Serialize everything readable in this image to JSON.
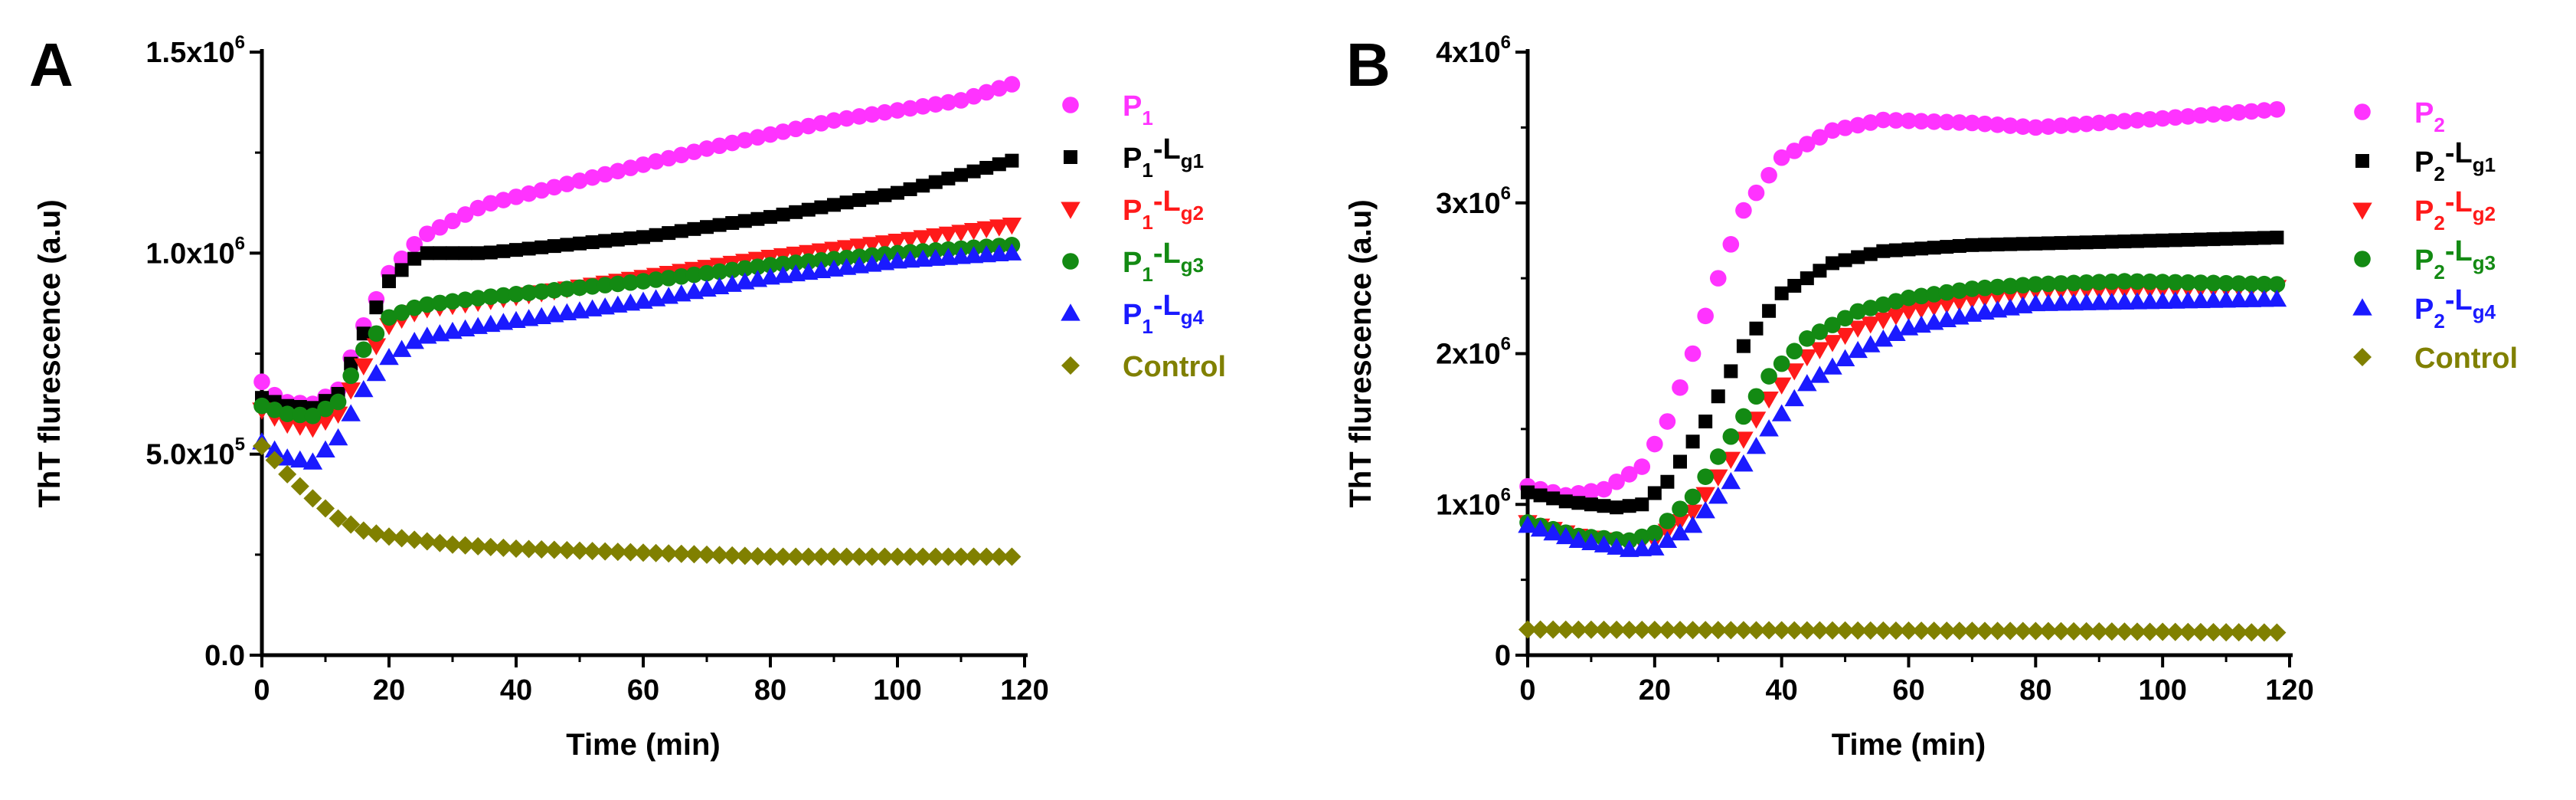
{
  "panels": [
    {
      "label": "A",
      "xlabel": "Time (min)",
      "ylabel": "ThT flurescence (a.u)",
      "xlim": [
        0,
        120
      ],
      "ylim": [
        0,
        1500000
      ],
      "xticks": [
        0,
        20,
        40,
        60,
        80,
        100,
        120
      ],
      "yticks": [
        {
          "value": 0,
          "mantissa": "0.0",
          "exp": ""
        },
        {
          "value": 500000,
          "mantissa": "5.0x10",
          "exp": "5"
        },
        {
          "value": 1000000,
          "mantissa": "1.0x10",
          "exp": "6"
        },
        {
          "value": 1500000,
          "mantissa": "1.5x10",
          "exp": "6"
        }
      ],
      "legend": [
        {
          "label": "P",
          "s1": "1",
          "mid": "",
          "s2": "",
          "color": "#ff33ff",
          "marker": "circle"
        },
        {
          "label": "P",
          "s1": "1",
          "mid": "-L",
          "s2": "g1",
          "color": "#000000",
          "marker": "square"
        },
        {
          "label": "P",
          "s1": "1",
          "mid": "-L",
          "s2": "g2",
          "color": "#ff1a1a",
          "marker": "tri-down"
        },
        {
          "label": "P",
          "s1": "1",
          "mid": "-L",
          "s2": "g3",
          "color": "#138a13",
          "marker": "circle"
        },
        {
          "label": "P",
          "s1": "1",
          "mid": "-L",
          "s2": "g4",
          "color": "#1a1aff",
          "marker": "tri-up"
        },
        {
          "label": "Control",
          "s1": "",
          "mid": "",
          "s2": "",
          "color": "#808000",
          "marker": "diamond"
        }
      ]
    },
    {
      "label": "B",
      "xlabel": "Time (min)",
      "ylabel": "ThT flurescence (a.u)",
      "xlim": [
        0,
        120
      ],
      "ylim": [
        0,
        4000000
      ],
      "xticks": [
        0,
        20,
        40,
        60,
        80,
        100,
        120
      ],
      "yticks": [
        {
          "value": 0,
          "mantissa": "0",
          "exp": ""
        },
        {
          "value": 1000000,
          "mantissa": "1x10",
          "exp": "6"
        },
        {
          "value": 2000000,
          "mantissa": "2x10",
          "exp": "6"
        },
        {
          "value": 3000000,
          "mantissa": "3x10",
          "exp": "6"
        },
        {
          "value": 4000000,
          "mantissa": "4x10",
          "exp": "6"
        }
      ],
      "legend": [
        {
          "label": "P",
          "s1": "2",
          "mid": "",
          "s2": "",
          "color": "#ff33ff",
          "marker": "circle"
        },
        {
          "label": "P",
          "s1": "2",
          "mid": "-L",
          "s2": "g1",
          "color": "#000000",
          "marker": "square"
        },
        {
          "label": "P",
          "s1": "2",
          "mid": "-L",
          "s2": "g2",
          "color": "#ff1a1a",
          "marker": "tri-down"
        },
        {
          "label": "P",
          "s1": "2",
          "mid": "-L",
          "s2": "g3",
          "color": "#138a13",
          "marker": "circle"
        },
        {
          "label": "P",
          "s1": "2",
          "mid": "-L",
          "s2": "g4",
          "color": "#1a1aff",
          "marker": "tri-up"
        },
        {
          "label": "Control",
          "s1": "",
          "mid": "",
          "s2": "",
          "color": "#808000",
          "marker": "diamond"
        }
      ]
    }
  ],
  "chart_data": [
    {
      "type": "scatter",
      "title": "A",
      "xlabel": "Time (min)",
      "ylabel": "ThT flurescence (a.u)",
      "xlim": [
        0,
        120
      ],
      "ylim": [
        0,
        1500000
      ],
      "sampling": {
        "start": 0,
        "end": 118,
        "step": 2
      },
      "series": [
        {
          "name": "P1",
          "color": "#ff33ff",
          "marker": "circle",
          "keypoints": [
            [
              0,
              680000
            ],
            [
              3,
              630000
            ],
            [
              8,
              625000
            ],
            [
              12,
              660000
            ],
            [
              16,
              820000
            ],
            [
              20,
              950000
            ],
            [
              25,
              1040000
            ],
            [
              35,
              1120000
            ],
            [
              50,
              1180000
            ],
            [
              70,
              1260000
            ],
            [
              90,
              1330000
            ],
            [
              110,
              1380000
            ],
            [
              118,
              1420000
            ]
          ]
        },
        {
          "name": "P1-Lg1",
          "color": "#000000",
          "marker": "square",
          "keypoints": [
            [
              0,
              640000
            ],
            [
              4,
              620000
            ],
            [
              8,
              615000
            ],
            [
              12,
              650000
            ],
            [
              16,
              800000
            ],
            [
              20,
              930000
            ],
            [
              25,
              1000000
            ],
            [
              35,
              1000000
            ],
            [
              60,
              1040000
            ],
            [
              80,
              1090000
            ],
            [
              100,
              1150000
            ],
            [
              118,
              1230000
            ]
          ]
        },
        {
          "name": "P1-Lg2",
          "color": "#ff1a1a",
          "marker": "tri-down",
          "keypoints": [
            [
              0,
              610000
            ],
            [
              4,
              575000
            ],
            [
              8,
              565000
            ],
            [
              12,
              600000
            ],
            [
              16,
              720000
            ],
            [
              20,
              820000
            ],
            [
              25,
              860000
            ],
            [
              35,
              880000
            ],
            [
              60,
              940000
            ],
            [
              80,
              990000
            ],
            [
              100,
              1030000
            ],
            [
              118,
              1070000
            ]
          ]
        },
        {
          "name": "P1-Lg3",
          "color": "#138a13",
          "marker": "circle",
          "keypoints": [
            [
              0,
              620000
            ],
            [
              4,
              600000
            ],
            [
              8,
              595000
            ],
            [
              12,
              630000
            ],
            [
              16,
              760000
            ],
            [
              20,
              840000
            ],
            [
              25,
              870000
            ],
            [
              35,
              890000
            ],
            [
              60,
              930000
            ],
            [
              80,
              970000
            ],
            [
              100,
              1000000
            ],
            [
              118,
              1020000
            ]
          ]
        },
        {
          "name": "P1-Lg4",
          "color": "#1a1aff",
          "marker": "tri-up",
          "keypoints": [
            [
              0,
              530000
            ],
            [
              4,
              490000
            ],
            [
              8,
              480000
            ],
            [
              12,
              540000
            ],
            [
              16,
              660000
            ],
            [
              20,
              740000
            ],
            [
              25,
              790000
            ],
            [
              35,
              820000
            ],
            [
              60,
              880000
            ],
            [
              80,
              940000
            ],
            [
              100,
              980000
            ],
            [
              118,
              1000000
            ]
          ]
        },
        {
          "name": "Control",
          "color": "#808000",
          "marker": "diamond",
          "keypoints": [
            [
              0,
              520000
            ],
            [
              4,
              450000
            ],
            [
              8,
              390000
            ],
            [
              12,
              340000
            ],
            [
              16,
              310000
            ],
            [
              20,
              295000
            ],
            [
              30,
              275000
            ],
            [
              40,
              265000
            ],
            [
              60,
              255000
            ],
            [
              80,
              245000
            ],
            [
              100,
              245000
            ],
            [
              118,
              245000
            ]
          ]
        }
      ]
    },
    {
      "type": "scatter",
      "title": "B",
      "xlabel": "Time (min)",
      "ylabel": "ThT flurescence (a.u)",
      "xlim": [
        0,
        120
      ],
      "ylim": [
        0,
        4000000
      ],
      "sampling": {
        "start": 0,
        "end": 118,
        "step": 2
      },
      "series": [
        {
          "name": "P2",
          "color": "#ff33ff",
          "marker": "circle",
          "keypoints": [
            [
              0,
              1120000
            ],
            [
              6,
              1060000
            ],
            [
              12,
              1100000
            ],
            [
              18,
              1250000
            ],
            [
              22,
              1550000
            ],
            [
              26,
              2000000
            ],
            [
              30,
              2500000
            ],
            [
              34,
              2950000
            ],
            [
              40,
              3300000
            ],
            [
              48,
              3480000
            ],
            [
              56,
              3550000
            ],
            [
              70,
              3530000
            ],
            [
              80,
              3500000
            ],
            [
              100,
              3560000
            ],
            [
              118,
              3620000
            ]
          ]
        },
        {
          "name": "P2-Lg1",
          "color": "#000000",
          "marker": "square",
          "keypoints": [
            [
              0,
              1080000
            ],
            [
              6,
              1020000
            ],
            [
              14,
              980000
            ],
            [
              18,
              1000000
            ],
            [
              22,
              1150000
            ],
            [
              28,
              1550000
            ],
            [
              34,
              2050000
            ],
            [
              40,
              2400000
            ],
            [
              48,
              2600000
            ],
            [
              56,
              2680000
            ],
            [
              70,
              2720000
            ],
            [
              90,
              2740000
            ],
            [
              118,
              2770000
            ]
          ]
        },
        {
          "name": "P2-Lg2",
          "color": "#ff1a1a",
          "marker": "tri-down",
          "keypoints": [
            [
              0,
              880000
            ],
            [
              8,
              790000
            ],
            [
              16,
              740000
            ],
            [
              20,
              760000
            ],
            [
              26,
              950000
            ],
            [
              32,
              1300000
            ],
            [
              38,
              1700000
            ],
            [
              44,
              1980000
            ],
            [
              52,
              2170000
            ],
            [
              60,
              2280000
            ],
            [
              70,
              2360000
            ],
            [
              80,
              2420000
            ],
            [
              118,
              2440000
            ]
          ]
        },
        {
          "name": "P2-Lg3",
          "color": "#138a13",
          "marker": "circle",
          "keypoints": [
            [
              0,
              880000
            ],
            [
              8,
              790000
            ],
            [
              16,
              760000
            ],
            [
              20,
              810000
            ],
            [
              26,
              1050000
            ],
            [
              32,
              1450000
            ],
            [
              38,
              1850000
            ],
            [
              44,
              2100000
            ],
            [
              52,
              2280000
            ],
            [
              60,
              2370000
            ],
            [
              70,
              2430000
            ],
            [
              80,
              2460000
            ],
            [
              94,
              2480000
            ],
            [
              118,
              2460000
            ]
          ]
        },
        {
          "name": "P2-Lg4",
          "color": "#1a1aff",
          "marker": "tri-up",
          "keypoints": [
            [
              0,
              860000
            ],
            [
              8,
              760000
            ],
            [
              16,
              700000
            ],
            [
              20,
              710000
            ],
            [
              26,
              860000
            ],
            [
              32,
              1150000
            ],
            [
              38,
              1500000
            ],
            [
              44,
              1800000
            ],
            [
              52,
              2020000
            ],
            [
              60,
              2170000
            ],
            [
              70,
              2260000
            ],
            [
              80,
              2330000
            ],
            [
              118,
              2360000
            ]
          ]
        },
        {
          "name": "Control",
          "color": "#808000",
          "marker": "diamond",
          "keypoints": [
            [
              0,
              170000
            ],
            [
              40,
              165000
            ],
            [
              80,
              160000
            ],
            [
              118,
              150000
            ]
          ]
        }
      ]
    }
  ]
}
